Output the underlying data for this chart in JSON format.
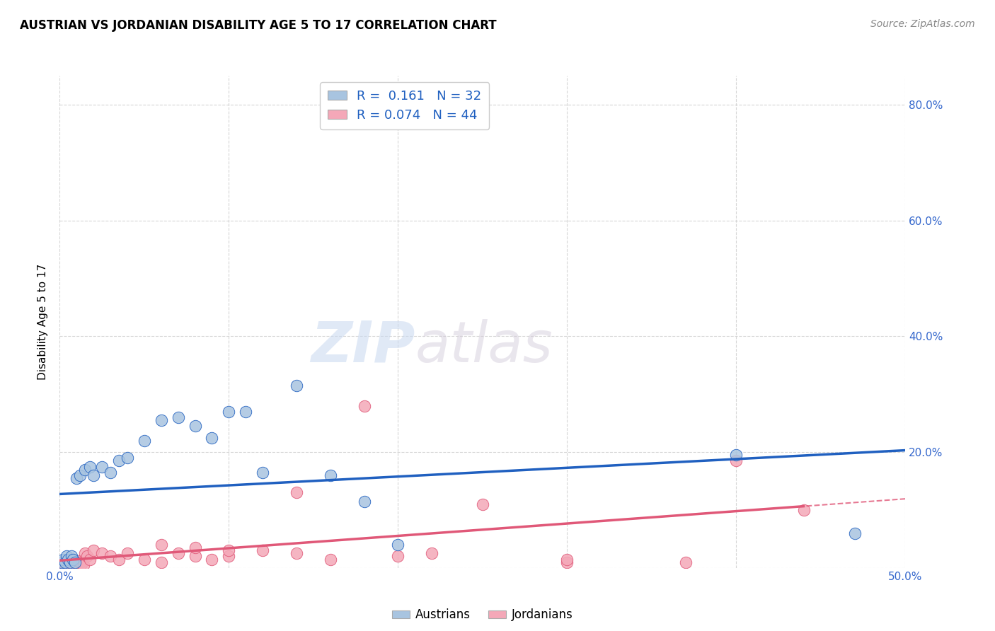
{
  "title": "AUSTRIAN VS JORDANIAN DISABILITY AGE 5 TO 17 CORRELATION CHART",
  "source": "Source: ZipAtlas.com",
  "ylabel": "Disability Age 5 to 17",
  "xlim": [
    0.0,
    0.5
  ],
  "ylim": [
    0.0,
    0.85
  ],
  "xticks": [
    0.0,
    0.1,
    0.2,
    0.3,
    0.4,
    0.5
  ],
  "xtick_labels": [
    "0.0%",
    "",
    "",
    "",
    "",
    "50.0%"
  ],
  "yticks": [
    0.0,
    0.2,
    0.4,
    0.6,
    0.8
  ],
  "ytick_labels_right": [
    "",
    "20.0%",
    "40.0%",
    "60.0%",
    "80.0%"
  ],
  "grid_color": "#cccccc",
  "background_color": "#ffffff",
  "austrians_color": "#a8c4e0",
  "jordanians_color": "#f4a8b8",
  "blue_line_color": "#2060c0",
  "pink_line_color": "#e05878",
  "watermark_zip": "ZIP",
  "watermark_atlas": "atlas",
  "legend_R_austrians": "0.161",
  "legend_N_austrians": "32",
  "legend_R_jordanians": "0.074",
  "legend_N_jordanians": "44",
  "austrians_x": [
    0.001,
    0.002,
    0.003,
    0.004,
    0.005,
    0.006,
    0.007,
    0.008,
    0.009,
    0.01,
    0.012,
    0.015,
    0.018,
    0.02,
    0.025,
    0.03,
    0.035,
    0.04,
    0.05,
    0.06,
    0.07,
    0.08,
    0.09,
    0.1,
    0.11,
    0.12,
    0.14,
    0.16,
    0.18,
    0.2,
    0.4,
    0.47
  ],
  "austrians_y": [
    0.01,
    0.015,
    0.01,
    0.02,
    0.015,
    0.01,
    0.02,
    0.015,
    0.01,
    0.155,
    0.16,
    0.17,
    0.175,
    0.16,
    0.175,
    0.165,
    0.185,
    0.19,
    0.22,
    0.255,
    0.26,
    0.245,
    0.225,
    0.27,
    0.27,
    0.165,
    0.315,
    0.16,
    0.115,
    0.04,
    0.195,
    0.06
  ],
  "jordanians_x": [
    0.001,
    0.002,
    0.003,
    0.004,
    0.005,
    0.006,
    0.007,
    0.008,
    0.009,
    0.01,
    0.011,
    0.012,
    0.013,
    0.014,
    0.015,
    0.016,
    0.018,
    0.02,
    0.025,
    0.03,
    0.035,
    0.04,
    0.05,
    0.06,
    0.07,
    0.08,
    0.09,
    0.1,
    0.12,
    0.14,
    0.16,
    0.18,
    0.2,
    0.22,
    0.25,
    0.3,
    0.37,
    0.44,
    0.06,
    0.08,
    0.1,
    0.14,
    0.3,
    0.4
  ],
  "jordanians_y": [
    0.01,
    0.008,
    0.005,
    0.012,
    0.006,
    0.01,
    0.008,
    0.005,
    0.012,
    0.008,
    0.012,
    0.01,
    0.007,
    0.005,
    0.025,
    0.02,
    0.015,
    0.03,
    0.025,
    0.02,
    0.015,
    0.025,
    0.015,
    0.01,
    0.025,
    0.02,
    0.015,
    0.02,
    0.03,
    0.025,
    0.015,
    0.28,
    0.02,
    0.025,
    0.11,
    0.01,
    0.01,
    0.1,
    0.04,
    0.035,
    0.03,
    0.13,
    0.015,
    0.185
  ]
}
